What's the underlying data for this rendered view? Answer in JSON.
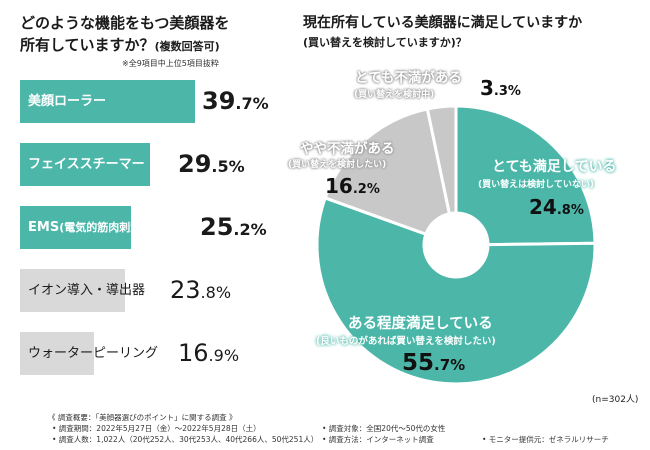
{
  "colors": {
    "teal": "#4cb7a9",
    "grey": "#d9d9d9",
    "pie_grey": "#c8c8c8",
    "pie_grey_dark": "#9a9a9a"
  },
  "left": {
    "title_line1": "どのような機能をもつ美顔器を",
    "title_line2": "所有していますか？",
    "title_sub": "(複数回答可)",
    "note": "※全9項目中上位5項目抜粋"
  },
  "right": {
    "title_line1": "現在所有している美顔器に満足していますか",
    "title_line2": "(買い替えを検討していますか)？",
    "n_label": "(n=302人)"
  },
  "chart_data": [
    {
      "type": "bar",
      "orientation": "horizontal",
      "title": "どのような機能をもつ美顔器を所有していますか？(複数回答可)",
      "note": "※全9項目中上位5項目抜粋",
      "unit": "%",
      "categories": [
        "美顔ローラー",
        "フェイススチーマー",
        "EMS",
        "イオン導入・導出器",
        "ウォーターピーリング"
      ],
      "category_suffix": [
        "",
        "",
        "(電気的筋肉刺激)",
        "",
        ""
      ],
      "values": [
        39.7,
        29.5,
        25.2,
        23.8,
        16.9
      ],
      "value_int": [
        "39",
        "29",
        "25",
        "23",
        "16"
      ],
      "value_dec": [
        ".7",
        ".5",
        ".2",
        ".8",
        ".9"
      ],
      "xlim": [
        0,
        45
      ],
      "highlight": [
        true,
        true,
        true,
        false,
        false
      ]
    },
    {
      "type": "pie",
      "style": "donut",
      "title": "現在所有している美顔器に満足していますか(買い替えを検討していますか)？",
      "unit": "%",
      "slices": [
        {
          "label": "とても満足している",
          "sub": "(買い替えは検討していない)",
          "value": 24.8,
          "int": "24",
          "dec": ".8",
          "color": "#4cb7a9"
        },
        {
          "label": "ある程度満足している",
          "sub": "(良いものがあれば買い替えを検討したい)",
          "value": 55.7,
          "int": "55",
          "dec": ".7",
          "color": "#4cb7a9"
        },
        {
          "label": "やや不満がある",
          "sub": "(買い替えを検討したい)",
          "value": 16.2,
          "int": "16",
          "dec": ".2",
          "color": "#c8c8c8"
        },
        {
          "label": "とても不満がある",
          "sub": "(買い替えを検討中)",
          "value": 3.3,
          "int": "3",
          "dec": ".3",
          "color": "#c8c8c8"
        }
      ],
      "n": "(n=302人)"
    }
  ],
  "footnotes": {
    "title": "《 調査概要：「美顔器選びのポイント」に関する調査 》",
    "period": "• 調査期間：2022年5月27日（金）～2022年5月28日（土）",
    "people": "• 調査人数：1,022人（20代252人、30代253人、40代266人、50代251人）",
    "target": "• 調査対象：全国20代～50代の女性",
    "method": "• 調査方法：インターネット調査",
    "provider": "• モニター提供元：ゼネラルリサーチ"
  }
}
